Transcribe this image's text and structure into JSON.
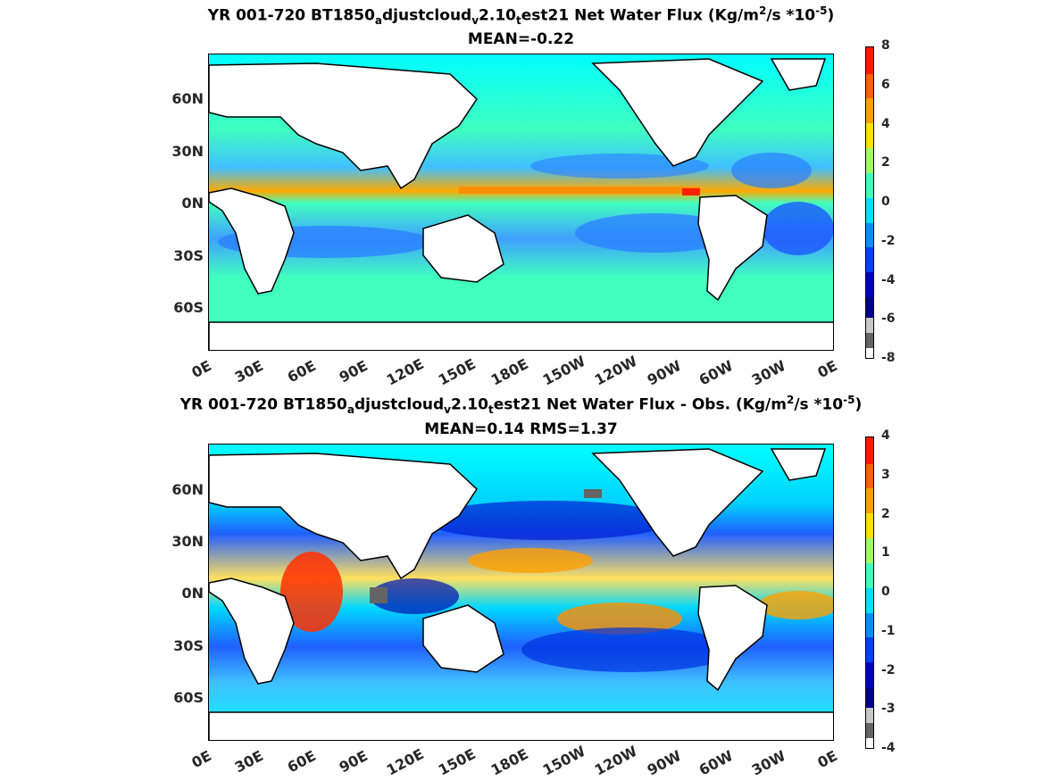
{
  "panels": [
    {
      "title_parts": {
        "prefix": "YR 001-720 BT1850",
        "sub1": "a",
        "mid1": "djustcloud",
        "sub2": "v",
        "mid2": "2.10",
        "sub3": "t",
        "suffix": "est21  Net Water Flux (Kg/m",
        "sup1": "2",
        "after1": "/s *10",
        "sup2": "-5",
        "end": ")"
      },
      "mean_text": "MEAN=-0.22",
      "lat_labels": [
        "60N",
        "30N",
        "0N",
        "30S",
        "60S"
      ],
      "lon_labels": [
        "0E",
        "30E",
        "60E",
        "90E",
        "120E",
        "150E",
        "180E",
        "150W",
        "120W",
        "90W",
        "60W",
        "30W",
        "0E"
      ],
      "colorbar_ticks": [
        "8",
        "6",
        "4",
        "2",
        "0",
        "-2",
        "-4",
        "-6",
        "-8"
      ]
    },
    {
      "title_parts": {
        "prefix": "YR 001-720 BT1850",
        "sub1": "a",
        "mid1": "djustcloud",
        "sub2": "v",
        "mid2": "2.10",
        "sub3": "t",
        "suffix": "est21  Net Water Flux - Obs. (Kg/m",
        "sup1": "2",
        "after1": "/s *10",
        "sup2": "-5",
        "end": ")"
      },
      "mean_text": "MEAN=0.14 RMS=1.37",
      "lat_labels": [
        "60N",
        "30N",
        "0N",
        "30S",
        "60S"
      ],
      "lon_labels": [
        "0E",
        "30E",
        "60E",
        "90E",
        "120E",
        "150E",
        "180E",
        "150W",
        "120W",
        "90W",
        "60W",
        "30W",
        "0E"
      ],
      "colorbar_ticks": [
        "4",
        "3",
        "2",
        "1",
        "0",
        "-1",
        "-2",
        "-3",
        "-4"
      ]
    }
  ],
  "colors": {
    "ocean_base": "#40ffbf",
    "land": "#ffffff",
    "coast": "#000000",
    "colormap": [
      "#ff0000",
      "#ff6a00",
      "#ffaa00",
      "#ffff00",
      "#80ff80",
      "#00ffff",
      "#0090ff",
      "#0030ff",
      "#0000aa",
      "#c8c8c8",
      "#646464"
    ]
  }
}
